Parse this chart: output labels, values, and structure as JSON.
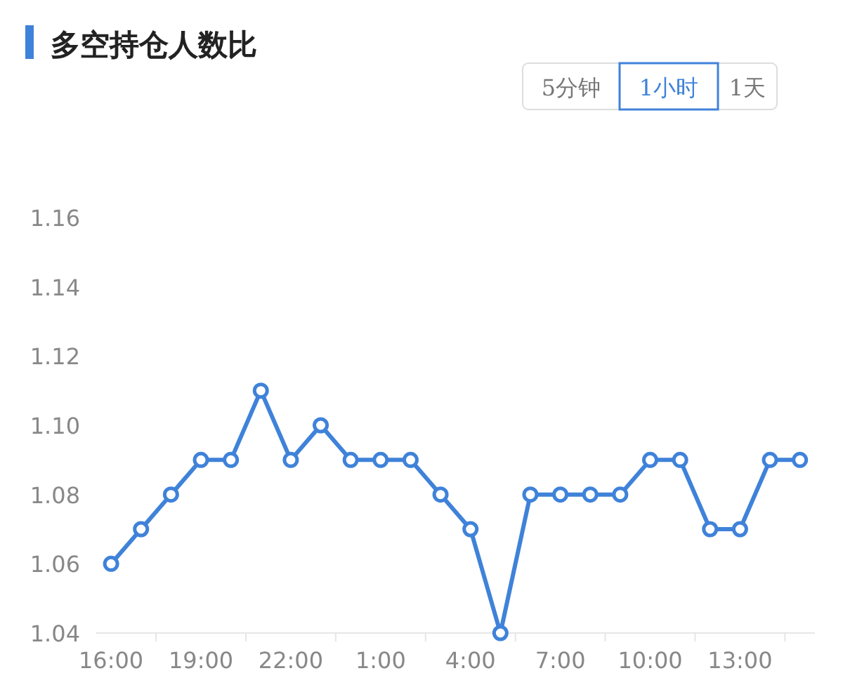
{
  "chart_data": {
    "type": "line",
    "title": "多空持仓人数比",
    "annotations": [
      "5分钟",
      "1小时",
      "1天"
    ],
    "categories": [
      "16:00",
      null,
      null,
      "19:00",
      null,
      null,
      "22:00",
      null,
      null,
      "1:00",
      null,
      null,
      "4:00",
      null,
      null,
      "7:00",
      null,
      null,
      "10:00",
      null,
      null,
      "13:00",
      null,
      null
    ],
    "series": [
      {
        "color": "#3f82d9",
        "values": [
          1.06,
          1.07,
          1.08,
          1.09,
          1.09,
          1.11,
          1.09,
          1.1,
          1.09,
          1.09,
          1.09,
          1.08,
          1.07,
          1.04,
          1.08,
          1.08,
          1.08,
          1.08,
          1.09,
          1.09,
          1.07,
          1.07,
          1.09,
          1.09
        ]
      }
    ],
    "ylim": [
      1.04,
      1.16
    ],
    "yticks": [
      1.04,
      1.06,
      1.08,
      {
        "value": 1.1,
        "label": "1.10"
      },
      1.12,
      1.14,
      1.16
    ],
    "marker": "circle"
  }
}
